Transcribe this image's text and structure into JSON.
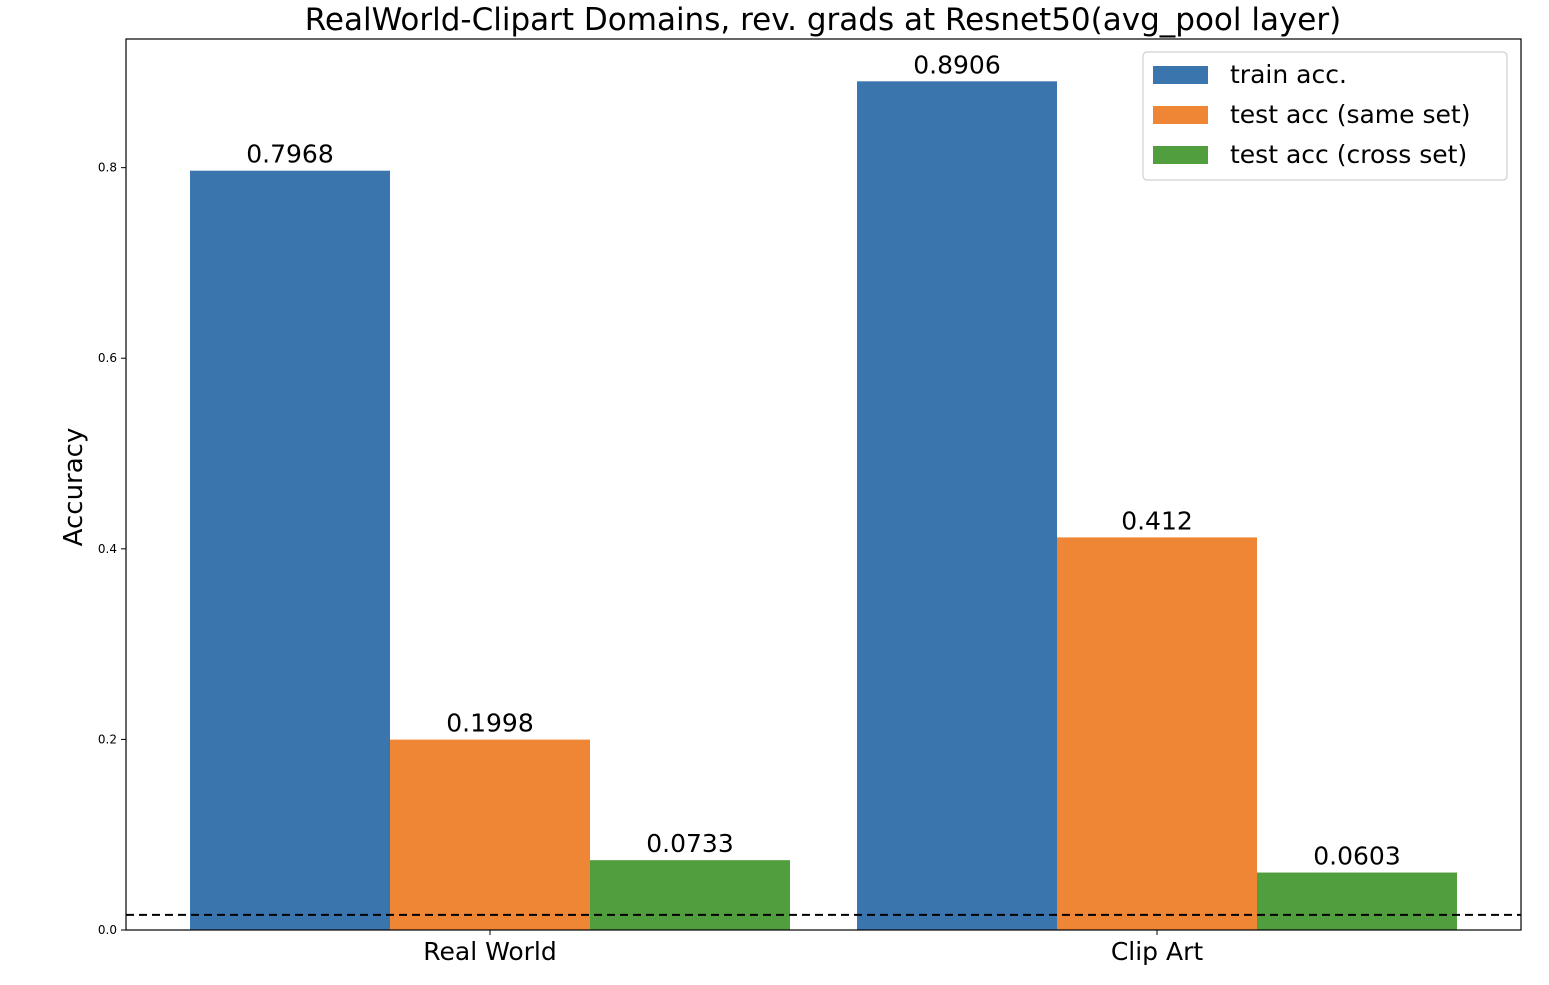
{
  "chart_data": {
    "type": "bar",
    "title": "RealWorld-Clipart Domains, rev. grads at Resnet50(avg_pool layer)",
    "ylabel": "Accuracy",
    "xlabel": "",
    "categories": [
      "Real World",
      "Clip Art"
    ],
    "series": [
      {
        "name": "train acc.",
        "color": "#3a75ae",
        "values": [
          0.7968,
          0.8906
        ],
        "labels": [
          "0.7968",
          "0.8906"
        ]
      },
      {
        "name": "test acc (same set)",
        "color": "#ef8636",
        "values": [
          0.1998,
          0.412
        ],
        "labels": [
          "0.1998",
          "0.412"
        ]
      },
      {
        "name": "test acc (cross set)",
        "color": "#519e3e",
        "values": [
          0.0733,
          0.0603
        ],
        "labels": [
          "0.0733",
          "0.0603"
        ]
      }
    ],
    "ylim": [
      0,
      0.935
    ],
    "yticks": [
      0.0,
      0.2,
      0.4,
      0.6,
      0.8
    ],
    "ytick_labels": [
      "0.0",
      "0.2",
      "0.4",
      "0.6",
      "0.8"
    ],
    "reference_line": {
      "value": 0.0159,
      "style": "dashed",
      "color": "#000000"
    },
    "grid": false,
    "legend_position": "top-right"
  }
}
